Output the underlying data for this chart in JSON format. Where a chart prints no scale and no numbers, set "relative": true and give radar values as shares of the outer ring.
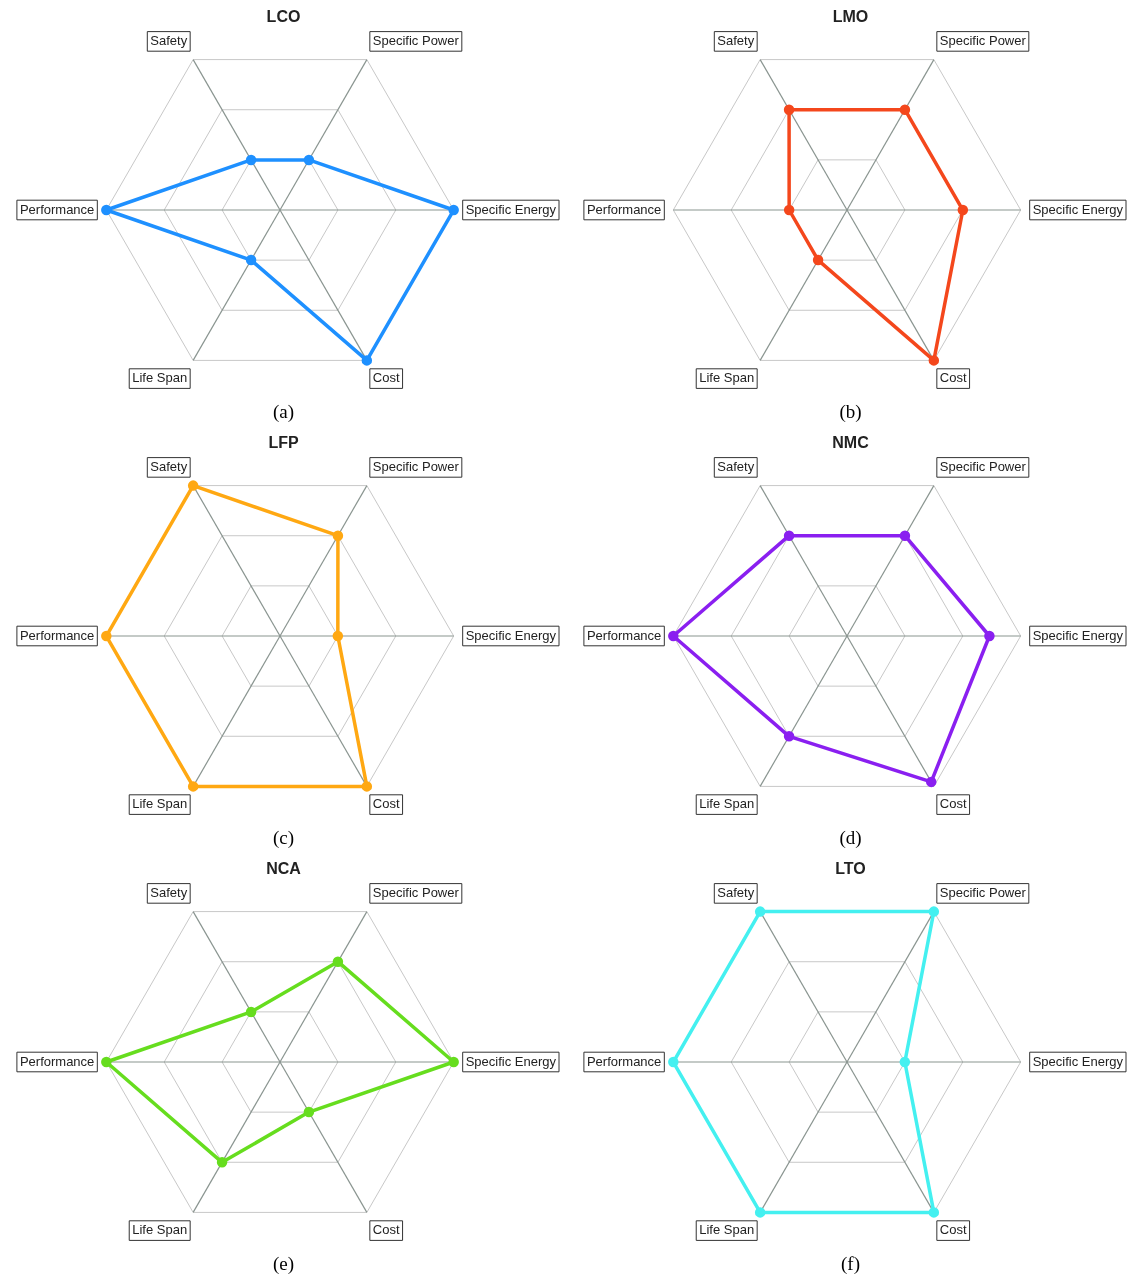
{
  "chart_data": [
    {
      "type": "radar",
      "title": "LCO",
      "categories": [
        "Safety",
        "Specific Power",
        "Specific Energy",
        "Cost",
        "Life Span",
        "Performance"
      ],
      "relative": true,
      "grid": true,
      "marker": "circle",
      "annotations": [
        "(a)"
      ],
      "series": [
        {
          "color": "#1e90ff",
          "values": [
            0.333,
            0.333,
            1,
            1,
            0.333,
            1
          ]
        }
      ]
    },
    {
      "type": "radar",
      "title": "LMO",
      "categories": [
        "Safety",
        "Specific Power",
        "Specific Energy",
        "Cost",
        "Life Span",
        "Performance"
      ],
      "relative": true,
      "grid": true,
      "marker": "circle",
      "annotations": [
        "(b)"
      ],
      "series": [
        {
          "color": "#f4471c",
          "values": [
            0.667,
            0.667,
            0.667,
            1,
            0.333,
            0.333
          ]
        }
      ]
    },
    {
      "type": "radar",
      "title": "LFP",
      "categories": [
        "Safety",
        "Specific Power",
        "Specific Energy",
        "Cost",
        "Life Span",
        "Performance"
      ],
      "relative": true,
      "grid": true,
      "marker": "circle",
      "annotations": [
        "(c)"
      ],
      "series": [
        {
          "color": "#ffa812",
          "values": [
            1,
            0.667,
            0.333,
            1,
            1,
            1
          ]
        }
      ]
    },
    {
      "type": "radar",
      "title": "NMC",
      "categories": [
        "Safety",
        "Specific Power",
        "Specific Energy",
        "Cost",
        "Life Span",
        "Performance"
      ],
      "relative": true,
      "grid": true,
      "marker": "circle",
      "annotations": [
        "(d)"
      ],
      "series": [
        {
          "color": "#8a1ff0",
          "values": [
            0.667,
            0.667,
            0.82,
            0.97,
            0.667,
            1
          ]
        }
      ]
    },
    {
      "type": "radar",
      "title": "NCA",
      "categories": [
        "Safety",
        "Specific Power",
        "Specific Energy",
        "Cost",
        "Life Span",
        "Performance"
      ],
      "relative": true,
      "grid": true,
      "marker": "circle",
      "annotations": [
        "(e)"
      ],
      "series": [
        {
          "color": "#66dd1e",
          "values": [
            0.333,
            0.667,
            1,
            0.333,
            0.667,
            1
          ]
        }
      ]
    },
    {
      "type": "radar",
      "title": "LTO",
      "categories": [
        "Safety",
        "Specific Power",
        "Specific Energy",
        "Cost",
        "Life Span",
        "Performance"
      ],
      "relative": true,
      "grid": true,
      "marker": "circle",
      "annotations": [
        "(f)"
      ],
      "series": [
        {
          "color": "#44f0f0",
          "values": [
            1,
            1,
            0.333,
            1,
            1,
            1
          ]
        }
      ]
    }
  ]
}
